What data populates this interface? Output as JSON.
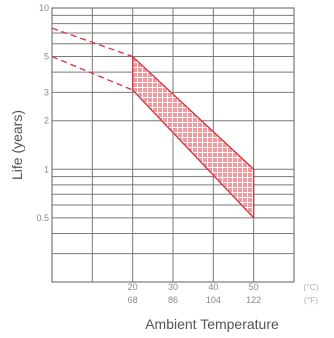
{
  "chart_data": {
    "type": "area",
    "xlabel": "Ambient Temperature",
    "ylabel": "Life (years)",
    "y_scale": "log",
    "ylim": [
      0.2,
      10
    ],
    "xlim": [
      0,
      60
    ],
    "grid": true,
    "x_ticks": [
      {
        "celsius": "20",
        "fahrenheit": "68"
      },
      {
        "celsius": "30",
        "fahrenheit": "86"
      },
      {
        "celsius": "40",
        "fahrenheit": "104"
      },
      {
        "celsius": "50",
        "fahrenheit": "122"
      }
    ],
    "x_units": [
      "(°C)",
      "(°F)"
    ],
    "y_ticks": [
      "10",
      "5",
      "3",
      "2",
      "1",
      "0.5"
    ],
    "band_color": "#d9303a",
    "series": [
      {
        "x": [
          0,
          20
        ],
        "upper": [
          7.5,
          5.0
        ],
        "lower": [
          5.0,
          3.1
        ],
        "style": "dashed"
      },
      {
        "x": [
          20,
          50
        ],
        "upper": [
          5.0,
          1.0
        ],
        "lower": [
          3.1,
          0.5
        ],
        "style": "hatched-band"
      }
    ]
  }
}
